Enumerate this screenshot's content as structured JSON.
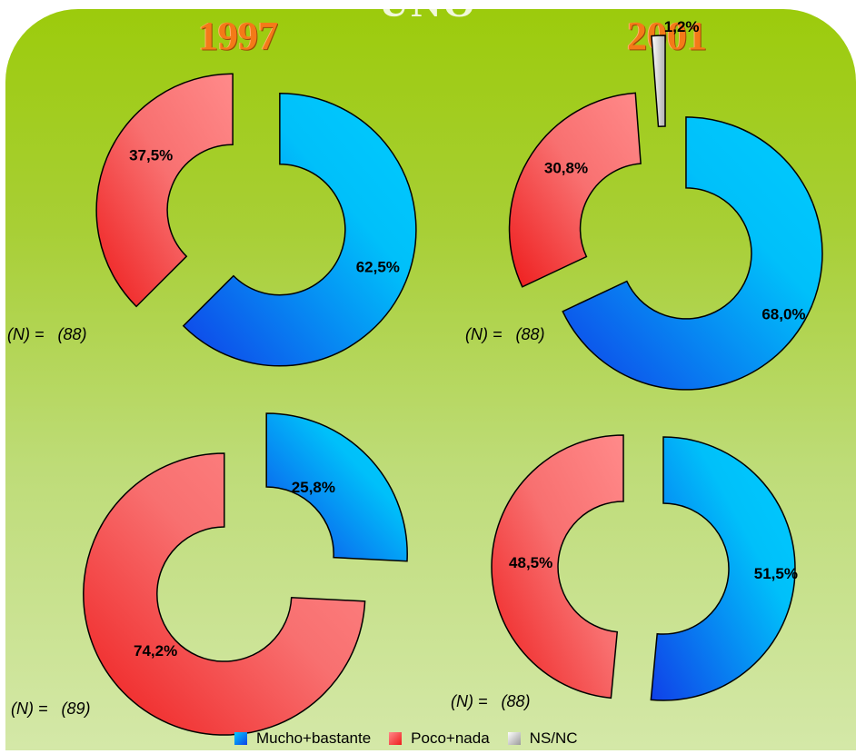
{
  "header": {
    "partial_title": "UNO"
  },
  "columns": [
    "1997",
    "2001"
  ],
  "colors": {
    "mucho_bastante": [
      "#00ccff",
      "#1040e8"
    ],
    "poco_nada": [
      "#ff8a8a",
      "#ee1c1c"
    ],
    "ns_nc": [
      "#ffffff",
      "#9a9a9a"
    ],
    "orange_title": "#f47a18"
  },
  "legend": [
    {
      "label": "Mucho+bastante",
      "key": "mucho_bastante"
    },
    {
      "label": "Poco+nada",
      "key": "poco_nada"
    },
    {
      "label": "NS/NC",
      "key": "ns_nc"
    }
  ],
  "n_labels": [
    "(N) =   (88)",
    "(N) =   (88)",
    "(N) =   (89)",
    "(N) =   (88)"
  ],
  "chart_data": [
    {
      "type": "pie",
      "title": "1997",
      "n": "(N) =   (88)",
      "slices": [
        {
          "label": "Mucho+bastante",
          "value": 62.5,
          "text": "62,5%"
        },
        {
          "label": "Poco+nada",
          "value": 37.5,
          "text": "37,5%"
        }
      ]
    },
    {
      "type": "pie",
      "title": "2001",
      "n": "(N) =   (88)",
      "slices": [
        {
          "label": "Mucho+bastante",
          "value": 68.0,
          "text": "68,0%"
        },
        {
          "label": "Poco+nada",
          "value": 30.8,
          "text": "30,8%"
        },
        {
          "label": "NS/NC",
          "value": 1.2,
          "text": "1,2%"
        }
      ]
    },
    {
      "type": "pie",
      "title": "1997",
      "n": "(N) =   (89)",
      "slices": [
        {
          "label": "Mucho+bastante",
          "value": 25.8,
          "text": "25,8%"
        },
        {
          "label": "Poco+nada",
          "value": 74.2,
          "text": "74,2%"
        }
      ]
    },
    {
      "type": "pie",
      "title": "2001",
      "n": "(N) =   (88)",
      "slices": [
        {
          "label": "Mucho+bastante",
          "value": 51.5,
          "text": "51,5%"
        },
        {
          "label": "Poco+nada",
          "value": 48.5,
          "text": "48,5%"
        }
      ]
    }
  ]
}
